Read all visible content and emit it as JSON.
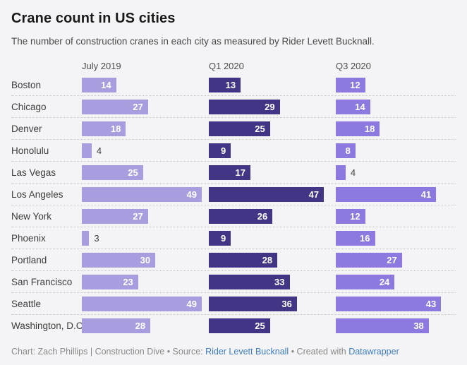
{
  "title": "Crane count in US cities",
  "subtitle": "The number of construction cranes in each city as measured by Rider Levett Bucknall.",
  "chart_data": {
    "type": "bar",
    "layout_hint": "small-multiples horizontal bars, one column per period, value labels on bars, no axes, dotted row separators",
    "categories": [
      "Boston",
      "Chicago",
      "Denver",
      "Honolulu",
      "Las Vegas",
      "Los Angeles",
      "New York",
      "Phoenix",
      "Portland",
      "San Francisco",
      "Seattle",
      "Washington, D.C."
    ],
    "series": [
      {
        "name": "July 2019",
        "color": "#a79ddf",
        "values": [
          14,
          27,
          18,
          4,
          25,
          49,
          27,
          3,
          30,
          23,
          49,
          28
        ]
      },
      {
        "name": "Q1 2020",
        "color": "#433586",
        "values": [
          13,
          29,
          25,
          9,
          17,
          47,
          26,
          9,
          28,
          33,
          36,
          25
        ]
      },
      {
        "name": "Q3 2020",
        "color": "#8d79e0",
        "values": [
          12,
          14,
          18,
          8,
          4,
          41,
          12,
          16,
          27,
          24,
          43,
          38
        ]
      }
    ],
    "xlim": [
      0,
      49
    ],
    "value_label_inside_color": "#ffffff",
    "value_label_outside_color": "#3d3d3d"
  },
  "footer": {
    "credit": "Chart: Zach Phillips | Construction Dive • Source: ",
    "source_link": "Rider Levett Bucknall",
    "created_with": " • Created with ",
    "tool_link": "Datawrapper",
    "link_color": "#3e7cc1"
  }
}
